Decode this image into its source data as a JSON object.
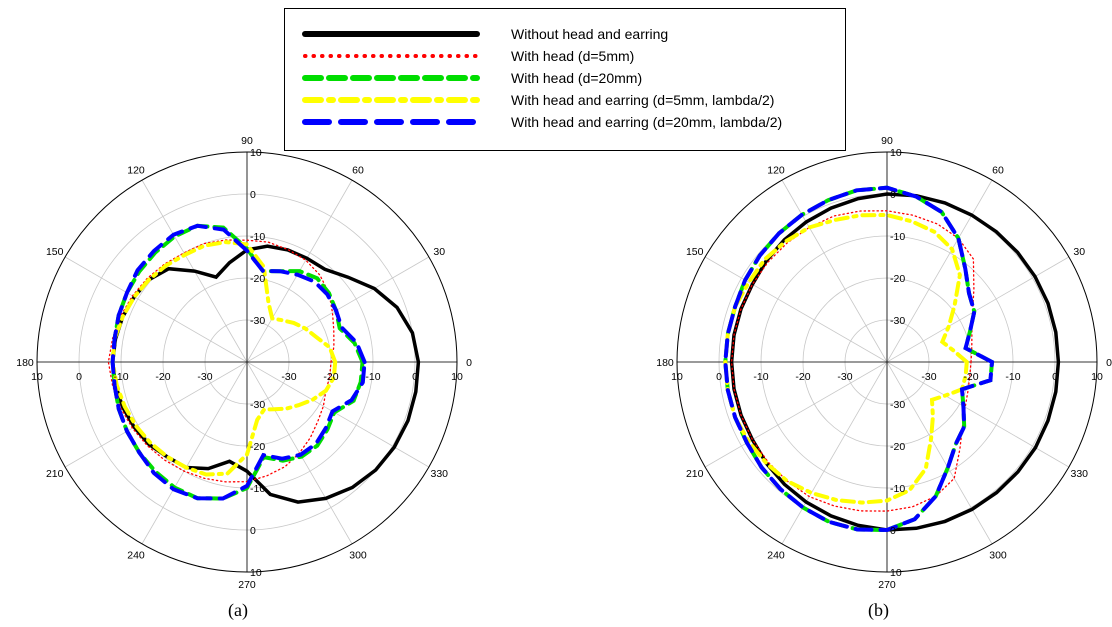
{
  "legend": [
    {
      "label": "Without head and earring",
      "color": "#000000",
      "dash": "solid"
    },
    {
      "label": "With head (d=5mm)",
      "color": "#ff0000",
      "dash": "dot"
    },
    {
      "label": "With head (d=20mm)",
      "color": "#00dd00",
      "dash": "dash"
    },
    {
      "label": "With head and earring (d=5mm, lambda/2)",
      "color": "#ffff00",
      "dash": "dashdot"
    },
    {
      "label": "With head and earring (d=20mm, lambda/2)",
      "color": "#0000ff",
      "dash": "longdash"
    }
  ],
  "captions": [
    "(a)",
    "(b)"
  ],
  "chart_data": [
    {
      "type": "line",
      "subtype": "polar",
      "caption": "(a)",
      "radial_range": [
        -40,
        10
      ],
      "radial_ticks": [
        10,
        0,
        -10,
        -20,
        -30
      ],
      "angular_ticks": [
        0,
        30,
        60,
        90,
        120,
        150,
        180,
        210,
        240,
        270,
        300,
        330
      ],
      "grid": true,
      "series": [
        {
          "name": "Without head and earring",
          "theta": [
            0,
            10,
            20,
            30,
            40,
            50,
            60,
            70,
            80,
            90,
            100,
            110,
            120,
            130,
            140,
            150,
            160,
            170,
            180,
            190,
            200,
            210,
            220,
            230,
            240,
            250,
            260,
            270,
            280,
            290,
            300,
            310,
            320,
            330,
            340,
            350
          ],
          "r": [
            0.8,
            0.0,
            -2.0,
            -5.0,
            -8.6,
            -11.2,
            -11.5,
            -11.6,
            -12.0,
            -13.3,
            -16.0,
            -18.5,
            -15.0,
            -11.0,
            -9.5,
            -9.0,
            -8.5,
            -8.2,
            -8.0,
            -8.2,
            -8.5,
            -9.0,
            -9.5,
            -10.5,
            -11.0,
            -13.0,
            -16.0,
            -14.0,
            -8.0,
            -4.5,
            -2.5,
            -1.0,
            0.0,
            0.5,
            0.8,
            0.8
          ]
        },
        {
          "name": "With head (d=5mm)",
          "theta": [
            0,
            10,
            20,
            30,
            40,
            50,
            60,
            70,
            80,
            90,
            100,
            110,
            120,
            130,
            140,
            150,
            160,
            170,
            180,
            190,
            200,
            210,
            220,
            230,
            240,
            250,
            260,
            270,
            280,
            290,
            300,
            310,
            320,
            330,
            340,
            350
          ],
          "r": [
            -20.0,
            -19.0,
            -18.0,
            -16.5,
            -14.5,
            -13.0,
            -12.0,
            -11.5,
            -11.0,
            -11.0,
            -10.5,
            -10.0,
            -10.0,
            -9.5,
            -9.0,
            -8.5,
            -8.0,
            -7.5,
            -7.0,
            -7.5,
            -8.0,
            -8.5,
            -9.0,
            -9.5,
            -10.0,
            -10.5,
            -11.0,
            -11.5,
            -12.5,
            -13.5,
            -15.0,
            -16.5,
            -18.0,
            -19.0,
            -20.0,
            -20.0
          ]
        },
        {
          "name": "With head (d=20mm)",
          "theta": [
            0,
            10,
            20,
            30,
            40,
            50,
            60,
            70,
            80,
            90,
            100,
            110,
            120,
            130,
            140,
            150,
            160,
            170,
            180,
            190,
            200,
            210,
            220,
            230,
            240,
            250,
            260,
            270,
            280,
            290,
            300,
            310,
            320,
            330,
            340,
            350
          ],
          "r": [
            -12.5,
            -14.0,
            -16.5,
            -15.5,
            -14.5,
            -14.0,
            -15.0,
            -17.0,
            -18.0,
            -13.0,
            -7.5,
            -5.5,
            -5.5,
            -6.0,
            -6.5,
            -7.0,
            -7.5,
            -8.0,
            -8.0,
            -8.0,
            -7.5,
            -7.0,
            -6.5,
            -6.0,
            -5.5,
            -5.5,
            -7.0,
            -10.0,
            -17.0,
            -15.0,
            -14.0,
            -14.0,
            -15.0,
            -16.0,
            -13.0,
            -12.5
          ]
        },
        {
          "name": "With head and earring (d=5mm, lambda/2)",
          "theta": [
            0,
            10,
            20,
            30,
            40,
            50,
            60,
            70,
            80,
            90,
            100,
            110,
            120,
            130,
            140,
            150,
            160,
            170,
            180,
            190,
            200,
            210,
            220,
            230,
            240,
            250,
            260,
            270,
            280,
            290,
            300,
            310,
            320,
            330,
            340,
            350
          ],
          "r": [
            -19.0,
            -20.0,
            -22.5,
            -24.0,
            -25.5,
            -27.0,
            -28.0,
            -25.0,
            -17.0,
            -12.0,
            -11.0,
            -10.5,
            -10.5,
            -10.0,
            -9.5,
            -9.0,
            -8.5,
            -8.0,
            -8.0,
            -8.5,
            -9.0,
            -9.5,
            -10.0,
            -10.5,
            -11.0,
            -11.5,
            -13.0,
            -18.0,
            -26.0,
            -28.0,
            -27.0,
            -25.5,
            -24.0,
            -22.0,
            -20.0,
            -19.0
          ]
        },
        {
          "name": "With head and earring (d=20mm, lambda/2)",
          "theta": [
            0,
            10,
            20,
            30,
            40,
            50,
            60,
            70,
            80,
            90,
            100,
            110,
            120,
            130,
            140,
            150,
            160,
            170,
            180,
            190,
            200,
            210,
            220,
            230,
            240,
            250,
            260,
            270,
            280,
            290,
            300,
            310,
            320,
            330,
            340,
            350
          ],
          "r": [
            -12.0,
            -13.5,
            -16.0,
            -15.5,
            -15.0,
            -15.0,
            -16.0,
            -17.0,
            -18.0,
            -13.5,
            -8.0,
            -5.5,
            -5.0,
            -5.5,
            -6.0,
            -7.0,
            -7.5,
            -8.0,
            -8.0,
            -8.0,
            -7.5,
            -7.0,
            -6.5,
            -5.5,
            -5.0,
            -5.5,
            -7.0,
            -10.5,
            -17.5,
            -15.5,
            -14.5,
            -14.5,
            -15.5,
            -16.5,
            -13.5,
            -12.0
          ]
        }
      ]
    },
    {
      "type": "line",
      "subtype": "polar",
      "caption": "(b)",
      "radial_range": [
        -40,
        10
      ],
      "radial_ticks": [
        10,
        0,
        -10,
        -20,
        -30
      ],
      "angular_ticks": [
        0,
        30,
        60,
        90,
        120,
        150,
        180,
        210,
        240,
        270,
        300,
        330
      ],
      "grid": true,
      "series": [
        {
          "name": "Without head and earring",
          "theta": [
            0,
            10,
            20,
            30,
            40,
            50,
            60,
            70,
            80,
            90,
            100,
            110,
            120,
            130,
            140,
            150,
            160,
            170,
            180,
            190,
            200,
            210,
            220,
            230,
            240,
            250,
            260,
            270,
            280,
            290,
            300,
            310,
            320,
            330,
            340,
            350
          ],
          "r": [
            0.8,
            0.8,
            0.8,
            0.7,
            0.6,
            0.5,
            0.4,
            0.3,
            0.2,
            0.0,
            -0.5,
            -1.0,
            -1.5,
            -2.0,
            -2.5,
            -3.0,
            -3.0,
            -3.0,
            -3.0,
            -3.0,
            -3.0,
            -3.0,
            -2.5,
            -2.0,
            -1.5,
            -1.0,
            -0.5,
            0.0,
            0.2,
            0.4,
            0.5,
            0.6,
            0.7,
            0.8,
            0.8,
            0.8
          ]
        },
        {
          "name": "With head (d=5mm)",
          "theta": [
            0,
            10,
            20,
            30,
            40,
            50,
            60,
            70,
            80,
            90,
            100,
            110,
            120,
            130,
            140,
            150,
            160,
            170,
            180,
            190,
            200,
            210,
            220,
            230,
            240,
            250,
            260,
            270,
            280,
            290,
            300,
            310,
            320,
            330,
            340,
            350
          ],
          "r": [
            -20.0,
            -19.5,
            -18.5,
            -16.5,
            -13.0,
            -8.0,
            -6.0,
            -5.0,
            -4.5,
            -4.0,
            -3.5,
            -3.0,
            -3.0,
            -3.0,
            -3.0,
            -3.0,
            -3.0,
            -3.0,
            -3.0,
            -3.0,
            -3.0,
            -3.0,
            -3.0,
            -3.0,
            -3.0,
            -3.5,
            -4.0,
            -4.5,
            -5.0,
            -6.0,
            -8.0,
            -13.0,
            -16.5,
            -18.5,
            -19.5,
            -20.0
          ]
        },
        {
          "name": "With head (d=20mm)",
          "theta": [
            0,
            10,
            20,
            30,
            40,
            50,
            60,
            70,
            80,
            90,
            100,
            110,
            120,
            130,
            140,
            150,
            160,
            170,
            180,
            190,
            200,
            210,
            220,
            230,
            240,
            250,
            260,
            270,
            280,
            290,
            300,
            310,
            320,
            330,
            340,
            350
          ],
          "r": [
            -15.0,
            -21.0,
            -19.0,
            -16.0,
            -14.5,
            -11.0,
            -6.0,
            -2.0,
            0.0,
            1.5,
            1.5,
            1.0,
            0.5,
            0.0,
            -0.5,
            -1.0,
            -1.5,
            -1.5,
            -1.5,
            -1.5,
            -1.5,
            -1.5,
            -1.0,
            -0.5,
            0.0,
            0.5,
            0.5,
            0.0,
            -2.0,
            -6.0,
            -11.0,
            -14.5,
            -16.0,
            -19.0,
            -21.0,
            -15.0
          ]
        },
        {
          "name": "With head and earring (d=5mm, lambda/2)",
          "theta": [
            0,
            10,
            20,
            30,
            40,
            50,
            60,
            70,
            80,
            90,
            100,
            110,
            120,
            130,
            140,
            150,
            160,
            170,
            180,
            190,
            200,
            210,
            220,
            230,
            240,
            250,
            260,
            270,
            280,
            290,
            300,
            310,
            320,
            330,
            340,
            350
          ],
          "r": [
            -21.0,
            -24.0,
            -26.0,
            -23.0,
            -19.0,
            -13.0,
            -9.0,
            -7.0,
            -6.0,
            -5.0,
            -4.5,
            -4.0,
            -3.0,
            -2.5,
            -2.0,
            -2.0,
            -1.5,
            -1.5,
            -1.5,
            -1.5,
            -1.5,
            -2.0,
            -2.5,
            -3.0,
            -4.0,
            -5.0,
            -6.0,
            -7.0,
            -9.0,
            -13.0,
            -19.0,
            -23.0,
            -26.0,
            -24.0,
            -21.0,
            -21.0
          ]
        },
        {
          "name": "With head and earring (d=20mm, lambda/2)",
          "theta": [
            0,
            10,
            20,
            30,
            40,
            50,
            60,
            70,
            80,
            90,
            100,
            110,
            120,
            130,
            140,
            150,
            160,
            170,
            180,
            190,
            200,
            210,
            220,
            230,
            240,
            250,
            260,
            270,
            280,
            290,
            300,
            310,
            320,
            330,
            340,
            350
          ],
          "r": [
            -15.0,
            -21.0,
            -19.0,
            -16.0,
            -14.5,
            -11.0,
            -6.0,
            -2.0,
            0.0,
            1.5,
            1.5,
            1.0,
            0.5,
            0.0,
            -0.5,
            -1.0,
            -1.5,
            -1.5,
            -1.5,
            -1.5,
            -1.5,
            -1.5,
            -1.0,
            -0.5,
            0.0,
            0.5,
            0.5,
            0.0,
            -2.0,
            -6.0,
            -11.0,
            -14.5,
            -16.0,
            -19.0,
            -21.0,
            -15.0
          ]
        }
      ]
    }
  ]
}
